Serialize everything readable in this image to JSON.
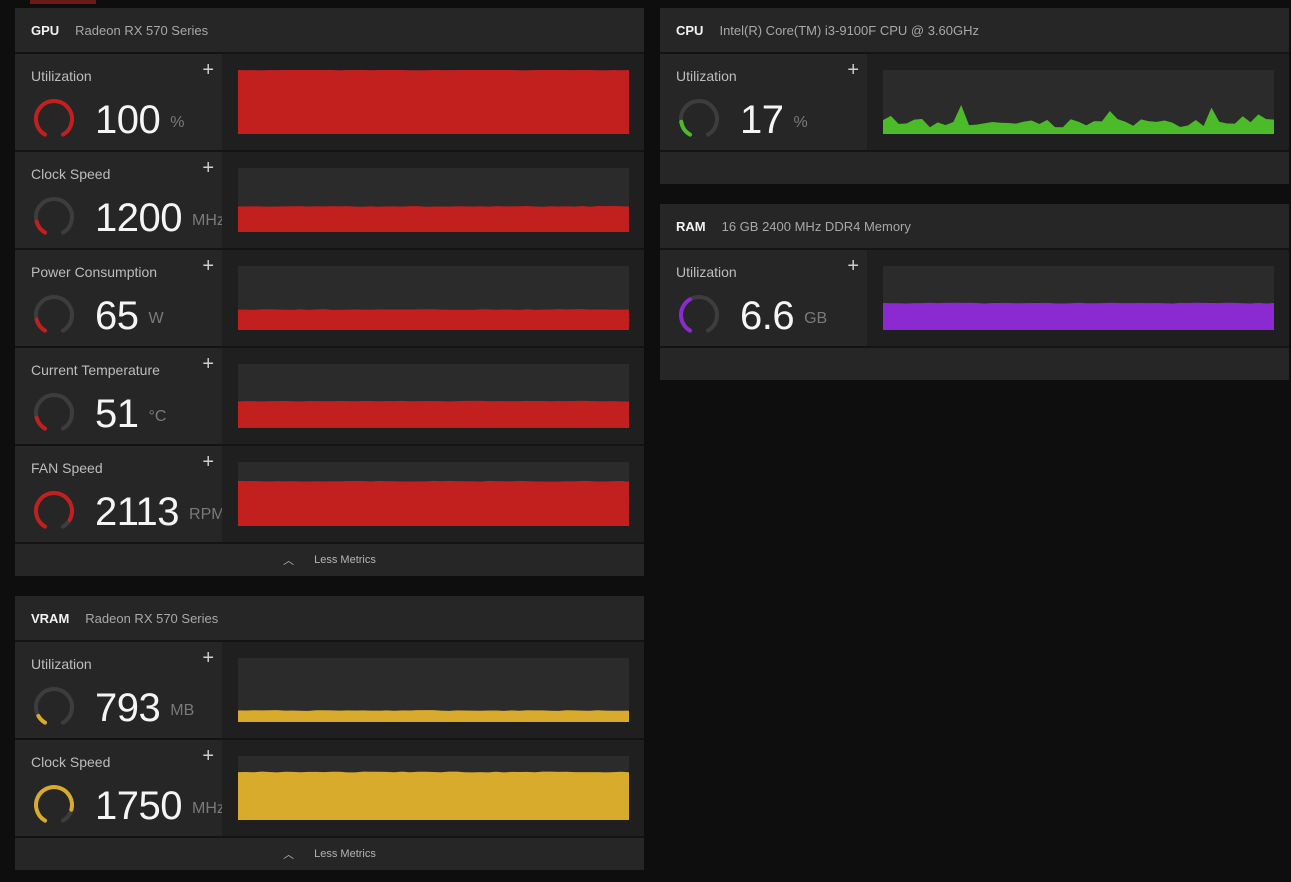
{
  "gpu": {
    "name": "GPU",
    "model": "Radeon RX 570 Series",
    "color": "#c21f1f",
    "footer_label": "Less Metrics",
    "metrics": [
      {
        "label": "Utilization",
        "value": "100",
        "unit": "%",
        "gauge_fraction": 1.0,
        "fill_fraction": 1.0
      },
      {
        "label": "Clock Speed",
        "value": "1200",
        "unit": "MHz",
        "gauge_fraction": 0.15,
        "fill_fraction": 0.4
      },
      {
        "label": "Power Consumption",
        "value": "65",
        "unit": "W",
        "gauge_fraction": 0.15,
        "fill_fraction": 0.32
      },
      {
        "label": "Current Temperature",
        "value": "51",
        "unit": "°C",
        "gauge_fraction": 0.15,
        "fill_fraction": 0.42
      },
      {
        "label": "FAN Speed",
        "value": "2113",
        "unit": "RPM",
        "gauge_fraction": 0.9,
        "fill_fraction": 0.7
      }
    ]
  },
  "vram": {
    "name": "VRAM",
    "model": "Radeon RX 570 Series",
    "color": "#d8ab2c",
    "footer_label": "Less Metrics",
    "metrics": [
      {
        "label": "Utilization",
        "value": "793",
        "unit": "MB",
        "gauge_fraction": 0.1,
        "fill_fraction": 0.18
      },
      {
        "label": "Clock Speed",
        "value": "1750",
        "unit": "MHz",
        "gauge_fraction": 0.85,
        "fill_fraction": 0.75
      }
    ]
  },
  "cpu": {
    "name": "CPU",
    "model": "Intel(R) Core(TM) i3-9100F CPU @ 3.60GHz",
    "color": "#4cbb2a",
    "metrics": [
      {
        "label": "Utilization",
        "value": "17",
        "unit": "%",
        "gauge_fraction": 0.17,
        "fill_fraction": 0.17
      }
    ]
  },
  "ram": {
    "name": "RAM",
    "model": "16 GB 2400 MHz DDR4 Memory",
    "color": "#8a2ad0",
    "metrics": [
      {
        "label": "Utilization",
        "value": "6.6",
        "unit": "GB",
        "gauge_fraction": 0.4,
        "fill_fraction": 0.42
      }
    ]
  },
  "plus_label": "+",
  "chevron_label": "︿"
}
